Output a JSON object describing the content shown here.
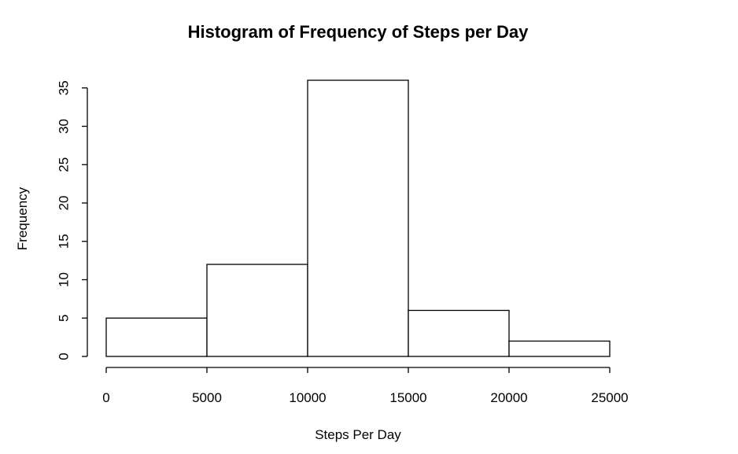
{
  "chart_data": {
    "type": "bar",
    "title": "Histogram of Frequency of Steps per Day",
    "xlabel": "Steps Per Day",
    "ylabel": "Frequency",
    "bins": [
      {
        "from": 0,
        "to": 5000,
        "value": 5
      },
      {
        "from": 5000,
        "to": 10000,
        "value": 12
      },
      {
        "from": 10000,
        "to": 15000,
        "value": 36
      },
      {
        "from": 15000,
        "to": 20000,
        "value": 6
      },
      {
        "from": 20000,
        "to": 25000,
        "value": 2
      }
    ],
    "xlim": [
      0,
      25000
    ],
    "ylim": [
      0,
      36
    ],
    "xticks": [
      0,
      5000,
      10000,
      15000,
      20000,
      25000
    ],
    "yticks": [
      0,
      5,
      10,
      15,
      20,
      25,
      30,
      35
    ],
    "grid": false,
    "bar_fill": "#ffffff",
    "bar_stroke": "#000000"
  }
}
